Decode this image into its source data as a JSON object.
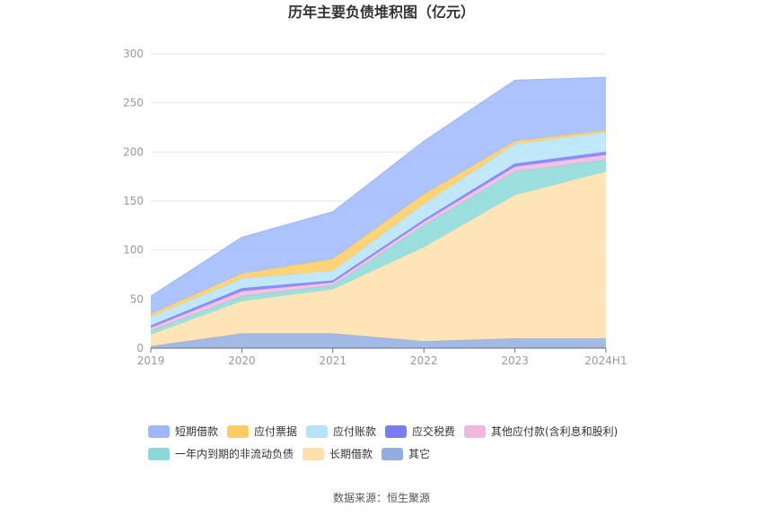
{
  "chart_data": {
    "type": "area",
    "stacked": true,
    "title": "历年主要负债堆积图（亿元）",
    "x": [
      "2019",
      "2020",
      "2021",
      "2022",
      "2023",
      "2024H1"
    ],
    "ylim": [
      0,
      300
    ],
    "yticks": [
      "0",
      "50",
      "100",
      "150",
      "200",
      "250",
      "300"
    ],
    "grid": true,
    "legend_position": "bottom",
    "series": [
      {
        "name": "其它",
        "color": "#92aee0",
        "values": [
          2,
          15,
          15,
          7,
          10,
          10
        ]
      },
      {
        "name": "长期借款",
        "color": "#ffe0ab",
        "values": [
          12,
          33,
          45,
          96,
          146,
          170
        ]
      },
      {
        "name": "一年内到期的非流动负债",
        "color": "#8ad9d8",
        "values": [
          4,
          5,
          4,
          22,
          24,
          12
        ]
      },
      {
        "name": "其他应付款(含利息和股利)",
        "color": "#efb8dc",
        "values": [
          3,
          5,
          3,
          4,
          5,
          5
        ]
      },
      {
        "name": "应交税费",
        "color": "#7c7cf2",
        "values": [
          2,
          3,
          2,
          2,
          3,
          3
        ]
      },
      {
        "name": "应付账款",
        "color": "#b6e3f9",
        "values": [
          9,
          10,
          10,
          16,
          20,
          20
        ]
      },
      {
        "name": "应付票据",
        "color": "#ffcd5f",
        "values": [
          3,
          5,
          12,
          10,
          3,
          2
        ]
      },
      {
        "name": "短期借款",
        "color": "#9db8fb",
        "values": [
          18,
          37,
          48,
          54,
          62,
          54
        ]
      }
    ],
    "legend_order": [
      "短期借款",
      "应付票据",
      "应付账款",
      "应交税费",
      "其他应付款(含利息和股利)",
      "一年内到期的非流动负债",
      "长期借款",
      "其它"
    ]
  },
  "source_text": "数据来源：恒生聚源"
}
